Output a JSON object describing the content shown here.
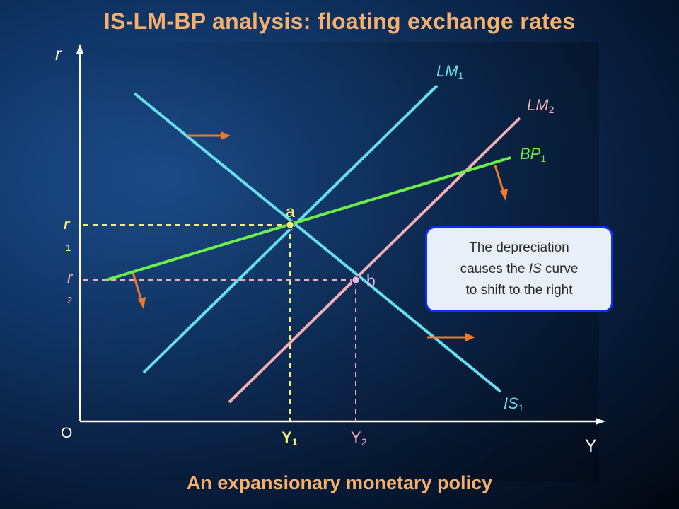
{
  "title": "IS-LM-BP analysis: floating exchange rates",
  "subtitle": "An expansionary monetary policy",
  "axes": {
    "y_label": "r",
    "x_label": "Y",
    "origin_label": "O"
  },
  "curves": {
    "lm1": {
      "name": "LM",
      "sub": "1",
      "color": "#66e0f0"
    },
    "lm2": {
      "name": "LM",
      "sub": "2",
      "color": "#f4aeb6"
    },
    "bp1": {
      "name": "BP",
      "sub": "1",
      "color": "#6cf048"
    },
    "is1": {
      "name": "IS",
      "sub": "1",
      "color": "#66e0f0"
    }
  },
  "points": {
    "a": {
      "label": "a",
      "r_name": "r",
      "r_sub": "1",
      "y_name": "Y",
      "y_sub": "1"
    },
    "b": {
      "label": "b",
      "r_name": "r",
      "r_sub": "2",
      "y_name": "Y",
      "y_sub": "2"
    }
  },
  "note": {
    "line1": "The depreciation",
    "line2_pre": "causes the ",
    "line2_em": "IS",
    "line2_post": " curve",
    "line3": "to shift to the right"
  },
  "colors": {
    "title": "#f7b06c",
    "axis": "#ffffff",
    "arrow": "#ef7a2a",
    "dash_a": "#f2f07a",
    "dash_b": "#f4aeb6",
    "note_border": "#0a2fff"
  }
}
